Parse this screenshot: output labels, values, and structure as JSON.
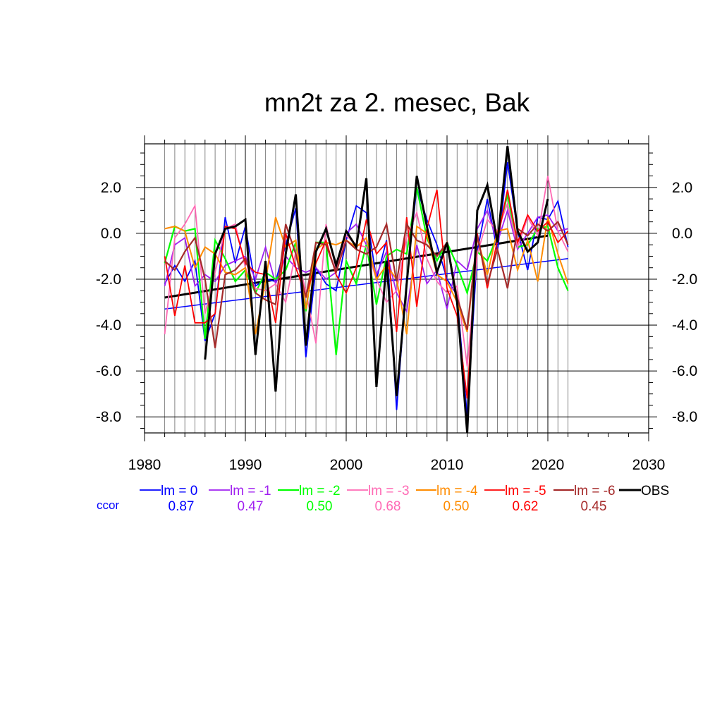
{
  "chart_data": {
    "type": "line",
    "title": "mn2t za 2. mesec, Bak",
    "xlim": [
      1980,
      2030
    ],
    "ylim": [
      -8.7,
      3.9
    ],
    "x_ticks": [
      1980,
      1990,
      2000,
      2010,
      2020,
      2030
    ],
    "x_tick_labels": [
      "1980",
      "1990",
      "2000",
      "2010",
      "2020",
      "2030"
    ],
    "y_ticks": [
      2.0,
      0.0,
      -2.0,
      -4.0,
      -6.0,
      -8.0
    ],
    "y_tick_labels": [
      "2.0",
      "0.0",
      "-2.0",
      "-4.0",
      "-6.0",
      "-8.0"
    ],
    "grid": "on",
    "legend_position": "bottom",
    "x": [
      1982,
      1983,
      1984,
      1985,
      1986,
      1987,
      1988,
      1989,
      1990,
      1991,
      1992,
      1993,
      1994,
      1995,
      1996,
      1997,
      1998,
      1999,
      2000,
      2001,
      2002,
      2003,
      2004,
      2005,
      2006,
      2007,
      2008,
      2009,
      2010,
      2011,
      2012,
      2013,
      2014,
      2015,
      2016,
      2017,
      2018,
      2019,
      2020,
      2021,
      2022
    ],
    "series": [
      {
        "name": "lm = 0",
        "color": "#0000ff",
        "width": 1.8,
        "values": [
          -2.2,
          -1.4,
          -2.1,
          -1.2,
          -4.7,
          -3.5,
          0.7,
          -1.3,
          0.3,
          -2.3,
          -2.0,
          -2.1,
          -0.5,
          1.1,
          -5.4,
          -1.5,
          -2.2,
          -2.5,
          -0.3,
          1.2,
          0.9,
          -2.0,
          -0.3,
          -7.7,
          -2.0,
          2.0,
          0.6,
          -0.5,
          -2.0,
          -2.7,
          -8.0,
          -0.8,
          1.5,
          -0.8,
          3.1,
          0.1,
          -1.6,
          0.7,
          0.6,
          1.4,
          -0.6
        ]
      },
      {
        "name": "lm = -1",
        "color": "#a020f0",
        "width": 1.8,
        "values": [
          -2.3,
          -0.5,
          -0.2,
          -2.3,
          -1.8,
          -2.1,
          -1.4,
          -1.2,
          -1.0,
          -2.0,
          -0.6,
          -2.2,
          -1.0,
          -1.5,
          -1.7,
          -1.5,
          -2.0,
          -1.7,
          0.0,
          0.4,
          -0.5,
          -1.8,
          -0.8,
          -2.6,
          -3.4,
          -0.5,
          -2.2,
          -1.6,
          -3.3,
          -1.2,
          -1.6,
          0.2,
          1.0,
          -0.4,
          1.0,
          -0.7,
          0.0,
          0.7,
          0.8,
          0.1,
          0.2
        ]
      },
      {
        "name": "lm = -2",
        "color": "#00ff00",
        "width": 2.2,
        "values": [
          -1.3,
          0.3,
          0.1,
          0.2,
          -4.6,
          -0.3,
          -1.1,
          -2.1,
          -1.6,
          -2.6,
          -1.7,
          -2.0,
          -1.6,
          -0.4,
          -3.4,
          -0.4,
          -0.4,
          -5.3,
          -1.2,
          -2.2,
          -0.5,
          -3.1,
          -1.0,
          -0.7,
          -0.9,
          2.0,
          -0.2,
          -1.2,
          -0.4,
          -1.4,
          -2.6,
          -0.8,
          -1.2,
          -0.1,
          1.7,
          -0.6,
          -0.5,
          0.2,
          0.3,
          -1.5,
          -2.5
        ]
      },
      {
        "name": "lm = -3",
        "color": "#ff69b4",
        "width": 1.8,
        "values": [
          -4.4,
          -0.2,
          0.4,
          1.2,
          -3.5,
          -1.7,
          0.2,
          0.4,
          -1.5,
          -2.4,
          -2.5,
          -2.2,
          -3.0,
          -0.8,
          -2.5,
          -4.8,
          0.4,
          -1.6,
          -0.1,
          -0.5,
          -0.6,
          -2.0,
          -3.0,
          -2.5,
          -0.2,
          0.9,
          -1.1,
          -2.1,
          -2.6,
          -2.3,
          -5.8,
          -0.9,
          0.6,
          0.1,
          1.3,
          -0.6,
          0.7,
          -0.1,
          2.5,
          0.1,
          -0.8
        ]
      },
      {
        "name": "lm = -4",
        "color": "#ff8c00",
        "width": 2.0,
        "values": [
          0.2,
          0.3,
          0.1,
          -1.5,
          -0.6,
          -0.9,
          -1.7,
          -1.8,
          -1.5,
          -4.4,
          -2.1,
          0.7,
          -0.6,
          -0.3,
          -3.3,
          -0.7,
          -0.4,
          -0.5,
          -0.3,
          -0.6,
          -0.2,
          -2.0,
          -1.4,
          -2.0,
          -4.4,
          0.3,
          0.0,
          -1.8,
          -2.1,
          -3.0,
          -4.3,
          -0.2,
          -1.8,
          0.1,
          0.2,
          -1.6,
          -0.3,
          -2.1,
          0.7,
          -0.9,
          -2.2
        ]
      },
      {
        "name": "lm = -5",
        "color": "#ff0000",
        "width": 1.8,
        "values": [
          -1.0,
          -3.6,
          -1.4,
          -3.9,
          -3.9,
          -3.5,
          0.3,
          0.2,
          -1.3,
          -1.7,
          -1.8,
          -3.9,
          0.0,
          -1.5,
          -2.7,
          -1.3,
          -0.3,
          -1.8,
          -2.6,
          -1.5,
          0.6,
          -0.9,
          -0.4,
          -4.3,
          0.7,
          -3.2,
          0.2,
          1.9,
          -2.4,
          -3.6,
          -7.2,
          0.0,
          -2.4,
          -0.3,
          1.9,
          -0.4,
          0.8,
          0.1,
          0.5,
          -0.4,
          0.1
        ]
      },
      {
        "name": "lm = -6",
        "color": "#a52a2a",
        "width": 2.2,
        "values": [
          -1.2,
          -1.6,
          -0.8,
          -0.2,
          -2.0,
          -5.0,
          -1.8,
          -1.6,
          -1.1,
          -2.6,
          -2.9,
          -3.1,
          0.4,
          -0.9,
          -2.8,
          -0.4,
          -0.5,
          -1.7,
          -0.3,
          -0.7,
          -0.9,
          -0.6,
          0.4,
          -2.1,
          0.4,
          -0.3,
          -0.5,
          -1.0,
          -0.4,
          -2.8,
          -4.2,
          -0.1,
          -2.2,
          -0.7,
          -2.4,
          0.2,
          -0.1,
          0.4,
          0.1,
          0.5,
          -0.5
        ]
      },
      {
        "name": "OBS",
        "color": "#000000",
        "width": 3.0,
        "values": [
          null,
          null,
          null,
          null,
          -5.5,
          -0.9,
          0.2,
          0.3,
          0.6,
          -5.3,
          -1.2,
          -6.9,
          -0.9,
          1.7,
          -4.9,
          -0.8,
          0.2,
          -1.4,
          0.1,
          -0.6,
          2.4,
          -6.7,
          -1.2,
          -7.1,
          -2.2,
          2.5,
          0.3,
          -1.7,
          -0.4,
          -3.0,
          -8.7,
          1.0,
          2.1,
          -0.4,
          3.8,
          0.1,
          -0.8,
          -0.4,
          1.5,
          null,
          null
        ]
      }
    ],
    "trend_lines": [
      {
        "series": "lm = 0",
        "color": "#0000ff",
        "x": [
          1982,
          2022
        ],
        "y": [
          -3.3,
          -1.1
        ]
      },
      {
        "series": "OBS",
        "color": "#000000",
        "x": [
          1982,
          2020
        ],
        "y": [
          -2.8,
          -0.1
        ]
      }
    ],
    "legend_label": "ccor",
    "ccor_values": [
      "0.87",
      "0.47",
      "0.50",
      "0.68",
      "0.50",
      "0.62",
      "0.45"
    ]
  }
}
